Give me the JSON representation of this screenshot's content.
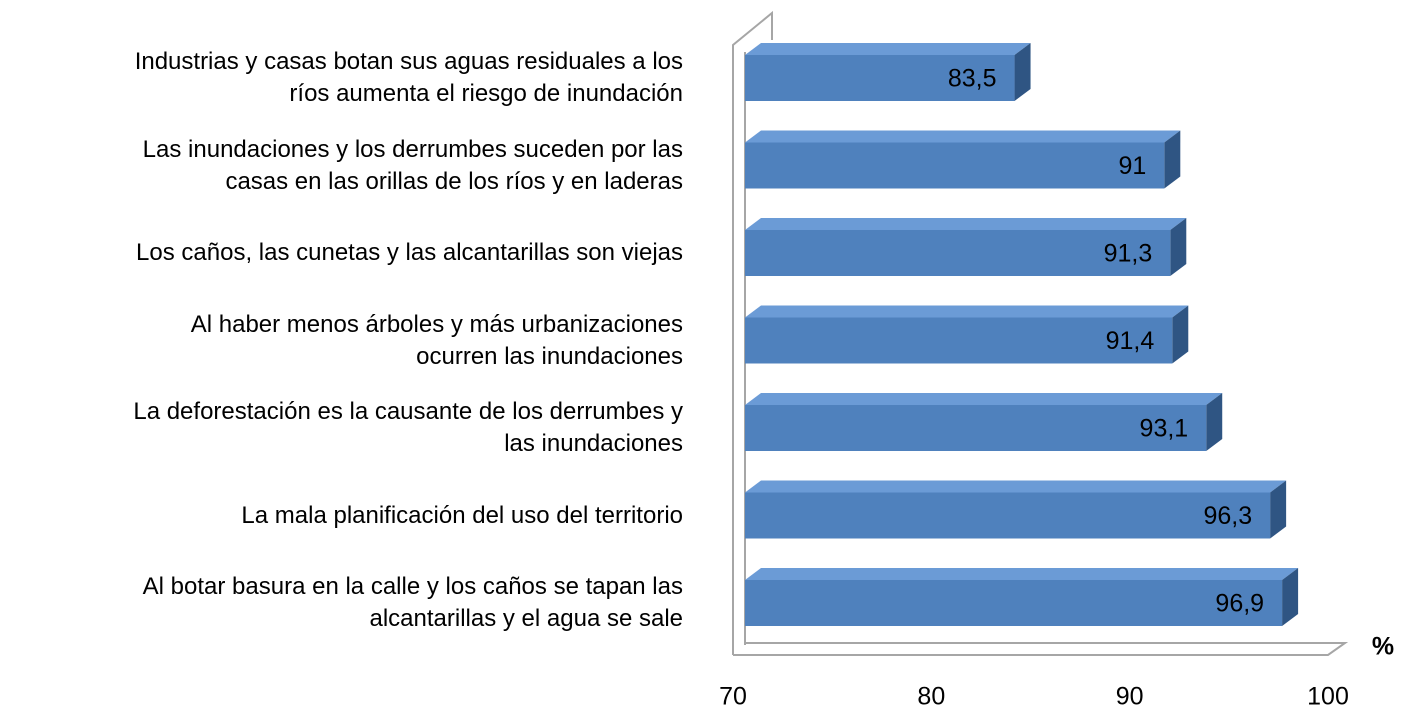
{
  "chart_data": {
    "type": "bar",
    "orientation": "horizontal",
    "categories": [
      "Industrias y casas botan sus aguas residuales a los\nríos aumenta el riesgo de inundación",
      "Las inundaciones y los derrumbes suceden por las\ncasas en las orillas de los ríos y en  laderas",
      "Los caños, las cunetas y las alcantarillas son viejas",
      "Al haber menos árboles y más urbanizaciones\nocurren las inundaciones",
      "La deforestación es la causante de los derrumbes y\nlas inundaciones",
      "La mala planificación del uso del territorio",
      "Al botar basura en la calle y los caños se tapan las\nalcantarillas y el agua se sale"
    ],
    "values": [
      83.5,
      91,
      91.3,
      91.4,
      93.1,
      96.3,
      96.9
    ],
    "value_labels": [
      "83,5",
      "91",
      "91,3",
      "91,4",
      "93,1",
      "96,3",
      "96,9"
    ],
    "color": "#4f81bd",
    "xlim": [
      70,
      100
    ],
    "xticks": [
      70,
      80,
      90,
      100
    ],
    "x_axis_label": "%"
  }
}
